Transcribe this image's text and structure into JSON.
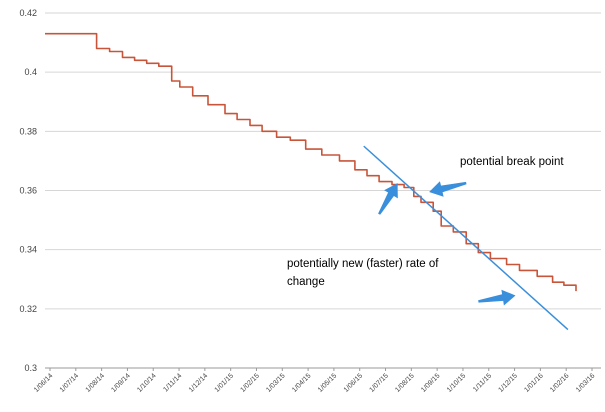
{
  "chart_data": {
    "type": "line",
    "title": "",
    "xlabel": "",
    "ylabel": "",
    "ylim": [
      0.3,
      0.42
    ],
    "y_ticks": [
      "0.3",
      "0.32",
      "0.34",
      "0.36",
      "0.38",
      "0.4",
      "0.42"
    ],
    "x_ticks": [
      "1/06/14",
      "1/07/14",
      "1/08/14",
      "1/09/14",
      "1/10/14",
      "1/11/14",
      "1/12/14",
      "1/01/15",
      "1/02/15",
      "1/03/15",
      "1/04/15",
      "1/05/15",
      "1/06/15",
      "1/07/15",
      "1/08/15",
      "1/09/15",
      "1/10/15",
      "1/11/15",
      "1/12/15",
      "1/01/16",
      "1/02/16",
      "1/03/16"
    ],
    "grid": "horizontal",
    "legend": "none",
    "series": [
      {
        "color": "#c8553a",
        "points": [
          [
            "2014-06-01",
            0.413
          ],
          [
            "2014-07-01",
            0.413
          ],
          [
            "2014-08-01",
            0.413
          ],
          [
            "2014-08-04",
            0.408
          ],
          [
            "2014-08-20",
            0.407
          ],
          [
            "2014-09-05",
            0.405
          ],
          [
            "2014-09-20",
            0.404
          ],
          [
            "2014-10-05",
            0.403
          ],
          [
            "2014-10-20",
            0.402
          ],
          [
            "2014-11-05",
            0.397
          ],
          [
            "2014-11-15",
            0.395
          ],
          [
            "2014-12-01",
            0.392
          ],
          [
            "2014-12-20",
            0.389
          ],
          [
            "2015-01-10",
            0.386
          ],
          [
            "2015-01-25",
            0.384
          ],
          [
            "2015-02-10",
            0.382
          ],
          [
            "2015-02-25",
            0.38
          ],
          [
            "2015-03-15",
            0.378
          ],
          [
            "2015-04-01",
            0.377
          ],
          [
            "2015-04-20",
            0.374
          ],
          [
            "2015-05-10",
            0.372
          ],
          [
            "2015-06-01",
            0.37
          ],
          [
            "2015-06-20",
            0.367
          ],
          [
            "2015-07-05",
            0.365
          ],
          [
            "2015-07-20",
            0.363
          ],
          [
            "2015-08-05",
            0.362
          ],
          [
            "2015-08-20",
            0.361
          ],
          [
            "2015-09-01",
            0.358
          ],
          [
            "2015-09-10",
            0.356
          ],
          [
            "2015-09-25",
            0.353
          ],
          [
            "2015-10-05",
            0.348
          ],
          [
            "2015-10-20",
            0.346
          ],
          [
            "2015-11-05",
            0.342
          ],
          [
            "2015-11-20",
            0.339
          ],
          [
            "2015-12-05",
            0.337
          ],
          [
            "2015-12-25",
            0.335
          ],
          [
            "2016-01-10",
            0.333
          ],
          [
            "2016-02-01",
            0.331
          ],
          [
            "2016-02-20",
            0.329
          ],
          [
            "2016-03-05",
            0.328
          ],
          [
            "2016-03-20",
            0.326
          ]
        ]
      }
    ],
    "trend_line": {
      "color": "#3a8fdc",
      "start": [
        "2015-07-01",
        0.375
      ],
      "end": [
        "2016-03-10",
        0.313
      ]
    },
    "annotations": [
      {
        "text": "potential break point",
        "color": "#3a8fdc"
      },
      {
        "text": "potentially new (faster) rate of",
        "color": "#3a8fdc"
      },
      {
        "text": "change",
        "color": "#3a8fdc"
      }
    ],
    "arrows": [
      {
        "from": [
          "2015-11-05",
          0.3625
        ],
        "to": [
          "2015-09-20",
          0.3595
        ],
        "color": "#3a8fdc"
      },
      {
        "from": [
          "2015-07-20",
          0.352
        ],
        "to": [
          "2015-08-12",
          0.3625
        ],
        "color": "#3a8fdc"
      },
      {
        "from": [
          "2015-11-20",
          0.3225
        ],
        "to": [
          "2016-01-05",
          0.3245
        ],
        "color": "#3a8fdc"
      }
    ]
  }
}
